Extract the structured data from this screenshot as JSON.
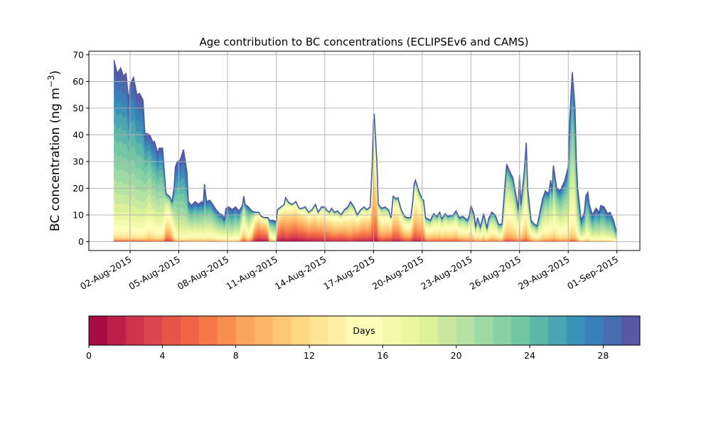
{
  "chart_data": {
    "type": "area",
    "stacked": true,
    "title": "Age contribution to BC concentrations (ECLIPSEv6 and CAMS)",
    "ylabel_main": "BC concentration (ng m",
    "ylabel_sup": "−3",
    "ylabel_end": ")",
    "xlabel": "",
    "ylim": [
      -3.3,
      71.3
    ],
    "yticks": [
      0,
      10,
      20,
      30,
      40,
      50,
      60,
      70
    ],
    "xlim": [
      "2015-07-30T11",
      "2015-09-02T10"
    ],
    "xticks": [
      "2015-08-02",
      "2015-08-05",
      "2015-08-08",
      "2015-08-11",
      "2015-08-14",
      "2015-08-17",
      "2015-08-20",
      "2015-08-23",
      "2015-08-26",
      "2015-08-29",
      "2015-09-01"
    ],
    "xtick_labels": [
      "02-Aug-2015",
      "05-Aug-2015",
      "08-Aug-2015",
      "11-Aug-2015",
      "14-Aug-2015",
      "17-Aug-2015",
      "20-Aug-2015",
      "23-Aug-2015",
      "26-Aug-2015",
      "29-Aug-2015",
      "01-Sep-2015"
    ],
    "grid": true,
    "colormap": "Spectral",
    "age_bins_days": 30,
    "colorbar": {
      "label": "Days",
      "range": [
        0,
        30
      ],
      "ticks": [
        0,
        4,
        8,
        12,
        16,
        20,
        24,
        28
      ],
      "orientation": "horizontal",
      "placement": "bottom"
    },
    "dates": [
      "2015-08-01T00",
      "2015-08-01T05",
      "2015-08-01T10",
      "2015-08-01T14",
      "2015-08-01T18",
      "2015-08-01T22",
      "2015-08-02T00",
      "2015-08-02T02",
      "2015-08-02T05",
      "2015-08-02T10",
      "2015-08-02T14",
      "2015-08-02T19",
      "2015-08-02T22",
      "2015-08-03T00",
      "2015-08-03T05",
      "2015-08-03T10",
      "2015-08-03T12",
      "2015-08-03T17",
      "2015-08-03T19",
      "2015-08-04T00",
      "2015-08-04T02",
      "2015-08-04T05",
      "2015-08-04T10",
      "2015-08-04T14",
      "2015-08-04T17",
      "2015-08-04T19",
      "2015-08-04T22",
      "2015-08-05T02",
      "2015-08-05T07",
      "2015-08-05T12",
      "2015-08-05T14",
      "2015-08-05T19",
      "2015-08-06T00",
      "2015-08-06T05",
      "2015-08-06T10",
      "2015-08-06T12",
      "2015-08-06T14",
      "2015-08-06T17",
      "2015-08-06T22",
      "2015-08-07T02",
      "2015-08-07T07",
      "2015-08-07T12",
      "2015-08-07T17",
      "2015-08-07T19",
      "2015-08-07T22",
      "2015-08-08T02",
      "2015-08-08T07",
      "2015-08-08T12",
      "2015-08-08T17",
      "2015-08-08T22",
      "2015-08-09T00",
      "2015-08-09T02",
      "2015-08-09T07",
      "2015-08-09T12",
      "2015-08-09T17",
      "2015-08-09T22",
      "2015-08-10T02",
      "2015-08-10T07",
      "2015-08-10T12",
      "2015-08-10T14",
      "2015-08-10T19",
      "2015-08-11T00",
      "2015-08-11T02",
      "2015-08-11T07",
      "2015-08-11T12",
      "2015-08-11T14",
      "2015-08-11T19",
      "2015-08-12T00",
      "2015-08-12T05",
      "2015-08-12T10",
      "2015-08-12T14",
      "2015-08-12T19",
      "2015-08-13T00",
      "2015-08-13T05",
      "2015-08-13T10",
      "2015-08-13T14",
      "2015-08-13T19",
      "2015-08-14T00",
      "2015-08-14T02",
      "2015-08-14T07",
      "2015-08-14T10",
      "2015-08-14T14",
      "2015-08-14T19",
      "2015-08-15T00",
      "2015-08-15T05",
      "2015-08-15T10",
      "2015-08-15T14",
      "2015-08-15T19",
      "2015-08-16T00",
      "2015-08-16T05",
      "2015-08-16T10",
      "2015-08-16T14",
      "2015-08-16T19",
      "2015-08-16T22",
      "2015-08-17T00",
      "2015-08-17T01",
      "2015-08-17T05",
      "2015-08-17T07",
      "2015-08-17T12",
      "2015-08-17T17",
      "2015-08-17T22",
      "2015-08-18T02",
      "2015-08-18T05",
      "2015-08-18T10",
      "2015-08-18T12",
      "2015-08-18T17",
      "2015-08-18T22",
      "2015-08-19T02",
      "2015-08-19T07",
      "2015-08-19T10",
      "2015-08-19T12",
      "2015-08-19T14",
      "2015-08-19T19",
      "2015-08-20T00",
      "2015-08-20T02",
      "2015-08-20T05",
      "2015-08-20T12",
      "2015-08-20T17",
      "2015-08-20T22",
      "2015-08-21T02",
      "2015-08-21T05",
      "2015-08-21T10",
      "2015-08-21T14",
      "2015-08-21T22",
      "2015-08-22T02",
      "2015-08-22T07",
      "2015-08-22T12",
      "2015-08-22T19",
      "2015-08-22T22",
      "2015-08-23T00",
      "2015-08-23T05",
      "2015-08-23T07",
      "2015-08-23T10",
      "2015-08-23T14",
      "2015-08-23T19",
      "2015-08-24T00",
      "2015-08-24T02",
      "2015-08-24T07",
      "2015-08-24T12",
      "2015-08-24T17",
      "2015-08-24T22",
      "2015-08-25T02",
      "2015-08-25T05",
      "2015-08-25T10",
      "2015-08-25T14",
      "2015-08-25T19",
      "2015-08-25T22",
      "2015-08-26T00",
      "2015-08-26T02",
      "2015-08-26T07",
      "2015-08-26T10",
      "2015-08-26T12",
      "2015-08-26T17",
      "2015-08-26T22",
      "2015-08-27T02",
      "2015-08-27T10",
      "2015-08-27T14",
      "2015-08-27T19",
      "2015-08-27T22",
      "2015-08-28T00",
      "2015-08-28T02",
      "2015-08-28T07",
      "2015-08-28T12",
      "2015-08-28T19",
      "2015-08-29T00",
      "2015-08-29T02",
      "2015-08-29T06",
      "2015-08-29T10",
      "2015-08-29T12",
      "2015-08-29T14",
      "2015-08-29T19",
      "2015-08-30T00",
      "2015-08-30T02",
      "2015-08-30T05",
      "2015-08-30T07",
      "2015-08-30T12",
      "2015-08-30T17",
      "2015-08-30T22",
      "2015-08-31T00",
      "2015-08-31T05",
      "2015-08-31T10",
      "2015-08-31T14",
      "2015-08-31T19",
      "2015-08-31T23"
    ],
    "total": [
      68,
      63,
      65,
      62,
      63,
      52,
      59,
      60,
      61.5,
      55,
      55.5,
      53,
      40,
      40.5,
      40,
      37,
      37.5,
      33,
      35,
      35,
      28,
      18,
      17,
      15,
      20,
      28,
      30,
      30.5,
      34.5,
      26,
      15,
      13.5,
      15,
      14,
      15,
      13.5,
      21.5,
      15,
      15.5,
      14,
      12,
      10.5,
      10,
      8,
      12.5,
      13,
      12,
      13,
      11.5,
      13.5,
      17,
      14,
      13,
      11.5,
      11,
      11,
      9.5,
      9,
      9,
      8,
      8,
      7.5,
      12,
      13,
      14,
      16.5,
      14.5,
      14,
      15,
      12.5,
      12.5,
      13,
      11,
      12,
      14,
      11,
      13,
      13,
      12,
      11,
      12.5,
      11,
      11.5,
      10,
      12,
      13,
      15,
      13,
      10,
      12,
      13,
      12,
      13,
      28,
      45,
      48,
      30,
      14,
      12.5,
      13,
      12,
      9,
      17,
      16,
      16.5,
      12,
      9.5,
      9,
      9,
      15,
      21.5,
      23,
      19,
      16,
      15.5,
      9,
      8,
      10.5,
      9.5,
      11,
      8.5,
      10.5,
      9.5,
      10,
      11.5,
      9,
      9.5,
      8,
      10,
      13.5,
      10,
      5.5,
      9,
      5.5,
      10.5,
      5,
      8.5,
      11,
      10,
      6.5,
      6.5,
      20,
      29,
      26,
      24,
      17,
      12,
      25,
      14,
      26.5,
      37,
      20,
      8,
      6.5,
      6,
      16,
      19,
      18,
      23,
      19,
      28.5,
      20,
      19,
      23,
      28,
      45,
      63.5,
      50,
      30,
      20,
      8,
      11,
      17,
      18.5,
      14,
      10,
      12.5,
      11,
      13.5,
      13,
      10.5,
      11,
      8,
      4
    ],
    "mean_age_days": [
      24,
      24,
      24,
      24,
      24,
      23,
      24,
      24,
      24,
      24,
      24,
      24,
      22,
      22,
      21,
      22,
      22,
      22,
      22,
      22,
      20,
      14,
      14,
      16,
      20,
      23,
      24,
      24,
      25,
      24,
      21,
      21,
      21,
      21,
      21,
      21,
      23,
      21,
      21,
      21,
      21,
      21,
      21,
      20,
      22,
      23,
      23,
      22,
      22,
      17,
      16,
      17,
      20,
      16,
      10,
      8,
      8,
      8,
      10,
      18,
      20,
      20,
      9,
      8,
      8,
      10,
      9,
      8,
      8,
      8,
      8,
      9,
      9,
      9,
      10,
      9,
      10,
      11,
      10,
      10,
      11,
      11,
      11,
      10,
      11,
      12,
      13,
      11,
      10,
      10,
      10,
      10,
      10,
      11,
      12,
      12,
      11,
      12,
      13,
      13,
      12,
      11,
      11,
      11,
      11,
      12,
      13,
      13,
      13,
      12,
      12,
      12,
      12,
      12,
      12,
      15,
      15,
      15,
      15,
      15,
      15,
      15,
      15,
      15,
      15,
      16,
      16,
      16,
      16,
      17,
      17,
      17,
      17,
      17,
      17,
      17,
      17,
      17,
      17,
      17,
      17,
      17,
      17,
      17,
      17,
      17,
      17,
      17,
      17,
      17,
      17,
      17,
      17,
      17,
      18,
      19,
      19,
      19,
      19,
      19,
      19,
      19,
      20,
      20,
      21,
      21,
      21,
      21,
      21,
      21,
      22,
      22,
      22,
      22,
      22,
      23,
      23,
      23,
      23,
      23,
      23,
      23,
      23,
      23,
      23
    ]
  }
}
